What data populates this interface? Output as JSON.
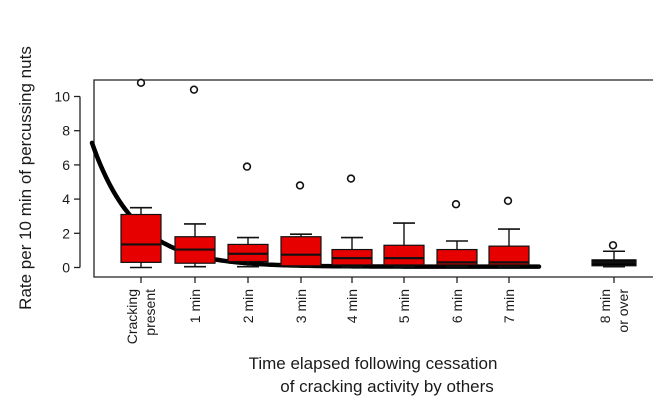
{
  "chart_data": {
    "type": "boxplot",
    "title": "",
    "ylabel": "Rate per 10 min of percussing nuts",
    "xlabel_lines": [
      "Time elapsed following cessation",
      "of cracking activity by others"
    ],
    "ylim": [
      -0.6,
      11.6
    ],
    "yticks": [
      0,
      2,
      4,
      6,
      8,
      10
    ],
    "categories": [
      {
        "lines": [
          "Cracking",
          "present"
        ]
      },
      {
        "lines": [
          "1 min"
        ]
      },
      {
        "lines": [
          "2 min"
        ]
      },
      {
        "lines": [
          "3 min"
        ]
      },
      {
        "lines": [
          "4 min"
        ]
      },
      {
        "lines": [
          "5 min"
        ]
      },
      {
        "lines": [
          "6 min"
        ]
      },
      {
        "lines": [
          "7 min"
        ]
      },
      {
        "lines": [
          "8 min",
          "or over"
        ]
      }
    ],
    "boxes": [
      {
        "whisker_low": 0.0,
        "q1": 0.3,
        "median": 1.35,
        "q3": 3.1,
        "whisker_high": 3.5,
        "outliers": [
          10.8
        ]
      },
      {
        "whisker_low": 0.05,
        "q1": 0.25,
        "median": 1.05,
        "q3": 1.8,
        "whisker_high": 2.55,
        "outliers": [
          10.4
        ]
      },
      {
        "whisker_low": 0.05,
        "q1": 0.35,
        "median": 0.8,
        "q3": 1.35,
        "whisker_high": 1.75,
        "outliers": [
          5.9
        ]
      },
      {
        "whisker_low": 0.05,
        "q1": 0.1,
        "median": 0.75,
        "q3": 1.8,
        "whisker_high": 1.95,
        "outliers": [
          4.8
        ]
      },
      {
        "whisker_low": 0.05,
        "q1": 0.15,
        "median": 0.55,
        "q3": 1.05,
        "whisker_high": 1.75,
        "outliers": [
          5.2
        ]
      },
      {
        "whisker_low": 0.05,
        "q1": 0.15,
        "median": 0.55,
        "q3": 1.3,
        "whisker_high": 2.6,
        "outliers": [
          null
        ]
      },
      {
        "whisker_low": 0.05,
        "q1": 0.15,
        "median": 0.3,
        "q3": 1.05,
        "whisker_high": 1.55,
        "outliers": [
          3.7
        ]
      },
      {
        "whisker_low": 0.05,
        "q1": 0.15,
        "median": 0.3,
        "q3": 1.25,
        "whisker_high": 2.25,
        "outliers": [
          3.9
        ]
      },
      {
        "whisker_low": 0.05,
        "q1": 0.1,
        "median": 0.3,
        "q3": 0.45,
        "whisker_high": 0.95,
        "outliers": [
          1.3
        ]
      }
    ],
    "fit_curve": {
      "type": "exponential_decay",
      "start_value": 7.4,
      "asymptote": 0.05,
      "rate_per_category": 1.25
    },
    "colors": {
      "box_fill": "#e60000",
      "box_fill_last": "#000000",
      "curve": "#000000"
    }
  }
}
